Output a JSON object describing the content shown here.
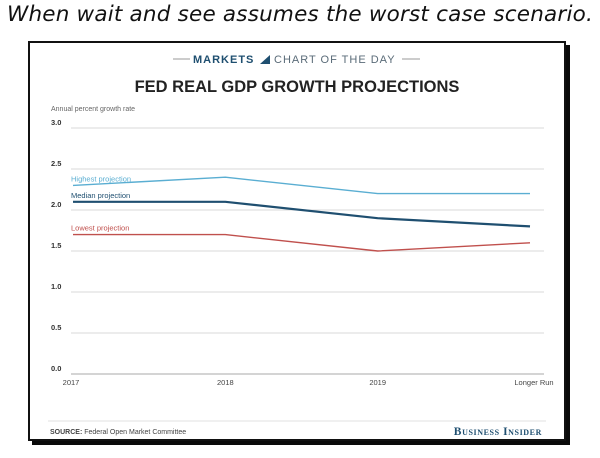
{
  "caption": "When wait and see assumes the worst case scenario.",
  "header": {
    "brand_left": "MARKETS",
    "brand_right": "CHART OF THE DAY"
  },
  "footer": {
    "source_label": "SOURCE:",
    "source_text": "Federal Open Market Committee",
    "publisher": "Business Insider"
  },
  "colors": {
    "highest": "#5aaed2",
    "median": "#1f4f70",
    "lowest": "#c0504d",
    "grid": "#d8d8d8",
    "text": "#333333"
  },
  "chart_data": {
    "type": "line",
    "title": "FED REAL GDP GROWTH PROJECTIONS",
    "ylabel": "Annual percent growth rate",
    "xlabel": "",
    "categories": [
      "2017",
      "2018",
      "2019",
      "Longer Run"
    ],
    "ylim": [
      0,
      3.0
    ],
    "yticks": [
      "0.0",
      "0.5",
      "1.0",
      "1.5",
      "2.0",
      "2.5",
      "3.0"
    ],
    "grid": true,
    "series": [
      {
        "name": "Highest projection",
        "values": [
          2.3,
          2.4,
          2.2,
          2.2
        ],
        "color": "#5aaed2"
      },
      {
        "name": "Median projection",
        "values": [
          2.1,
          2.1,
          1.9,
          1.8
        ],
        "color": "#1f4f70"
      },
      {
        "name": "Lowest projection",
        "values": [
          1.7,
          1.7,
          1.5,
          1.6
        ],
        "color": "#c0504d"
      }
    ]
  }
}
